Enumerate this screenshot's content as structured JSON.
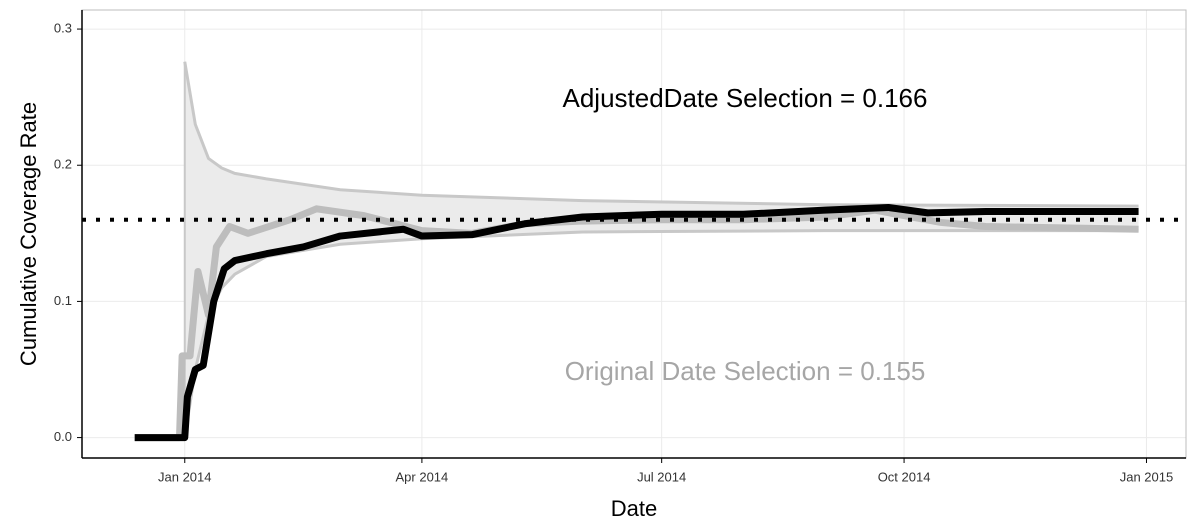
{
  "chart_data": {
    "type": "line",
    "xlabel": "Date",
    "ylabel": "Cumulative Coverage Rate",
    "annotations": [
      {
        "text": "AdjustedDate Selection = 0.166",
        "color": "#000000"
      },
      {
        "text": "Original Date Selection = 0.155",
        "color": "#a6a6a6"
      }
    ],
    "xlim": [
      "2013-11-23",
      "2015-01-16"
    ],
    "xticks": [
      {
        "value": "2014-01-01",
        "label": "Jan 2014"
      },
      {
        "value": "2014-04-01",
        "label": "Apr 2014"
      },
      {
        "value": "2014-07-01",
        "label": "Jul 2014"
      },
      {
        "value": "2014-10-01",
        "label": "Oct 2014"
      },
      {
        "value": "2015-01-01",
        "label": "Jan 2015"
      }
    ],
    "ylim": [
      -0.015,
      0.314
    ],
    "yticks": [
      {
        "value": 0,
        "label": "0.0"
      },
      0.1,
      0.2,
      0.3
    ],
    "grid": true,
    "reference_line": 0.16,
    "band": {
      "color": "#ebebeb",
      "edge_color": "#c8c8c8",
      "x": [
        "2014-01-01",
        "2014-01-05",
        "2014-01-10",
        "2014-01-15",
        "2014-01-20",
        "2014-02-01",
        "2014-03-01",
        "2014-04-01",
        "2014-06-01",
        "2014-09-01",
        "2014-12-29"
      ],
      "upper": [
        0.276,
        0.23,
        0.205,
        0.198,
        0.194,
        0.19,
        0.182,
        0.178,
        0.174,
        0.171,
        0.17
      ],
      "lower": [
        0.0,
        0.05,
        0.09,
        0.11,
        0.12,
        0.133,
        0.142,
        0.146,
        0.151,
        0.152,
        0.152
      ]
    },
    "series": [
      {
        "name": "Original Date Selection",
        "color": "#bdbdbd",
        "x": [
          "2013-12-13",
          "2013-12-30",
          "2013-12-31",
          "2014-01-03",
          "2014-01-06",
          "2014-01-10",
          "2014-01-13",
          "2014-01-18",
          "2014-01-25",
          "2014-02-10",
          "2014-02-20",
          "2014-03-10",
          "2014-04-01",
          "2014-04-20",
          "2014-05-10",
          "2014-06-01",
          "2014-07-01",
          "2014-08-01",
          "2014-09-01",
          "2014-09-20",
          "2014-10-15",
          "2014-11-01",
          "2014-12-29"
        ],
        "values": [
          0,
          0,
          0.06,
          0.06,
          0.122,
          0.09,
          0.14,
          0.155,
          0.15,
          0.16,
          0.168,
          0.163,
          0.152,
          0.15,
          0.157,
          0.159,
          0.16,
          0.16,
          0.162,
          0.167,
          0.158,
          0.155,
          0.153
        ]
      },
      {
        "name": "AdjustedDate Selection",
        "color": "#000000",
        "x": [
          "2013-12-13",
          "2014-01-01",
          "2014-01-02",
          "2014-01-05",
          "2014-01-08",
          "2014-01-12",
          "2014-01-16",
          "2014-01-20",
          "2014-02-01",
          "2014-02-15",
          "2014-03-01",
          "2014-03-25",
          "2014-04-01",
          "2014-04-20",
          "2014-05-10",
          "2014-06-01",
          "2014-07-01",
          "2014-08-01",
          "2014-09-01",
          "2014-09-25",
          "2014-10-10",
          "2014-11-01",
          "2014-12-29"
        ],
        "values": [
          0,
          0,
          0.03,
          0.05,
          0.053,
          0.1,
          0.124,
          0.13,
          0.135,
          0.14,
          0.148,
          0.153,
          0.148,
          0.149,
          0.157,
          0.162,
          0.164,
          0.164,
          0.167,
          0.169,
          0.165,
          0.166,
          0.166
        ]
      }
    ]
  }
}
